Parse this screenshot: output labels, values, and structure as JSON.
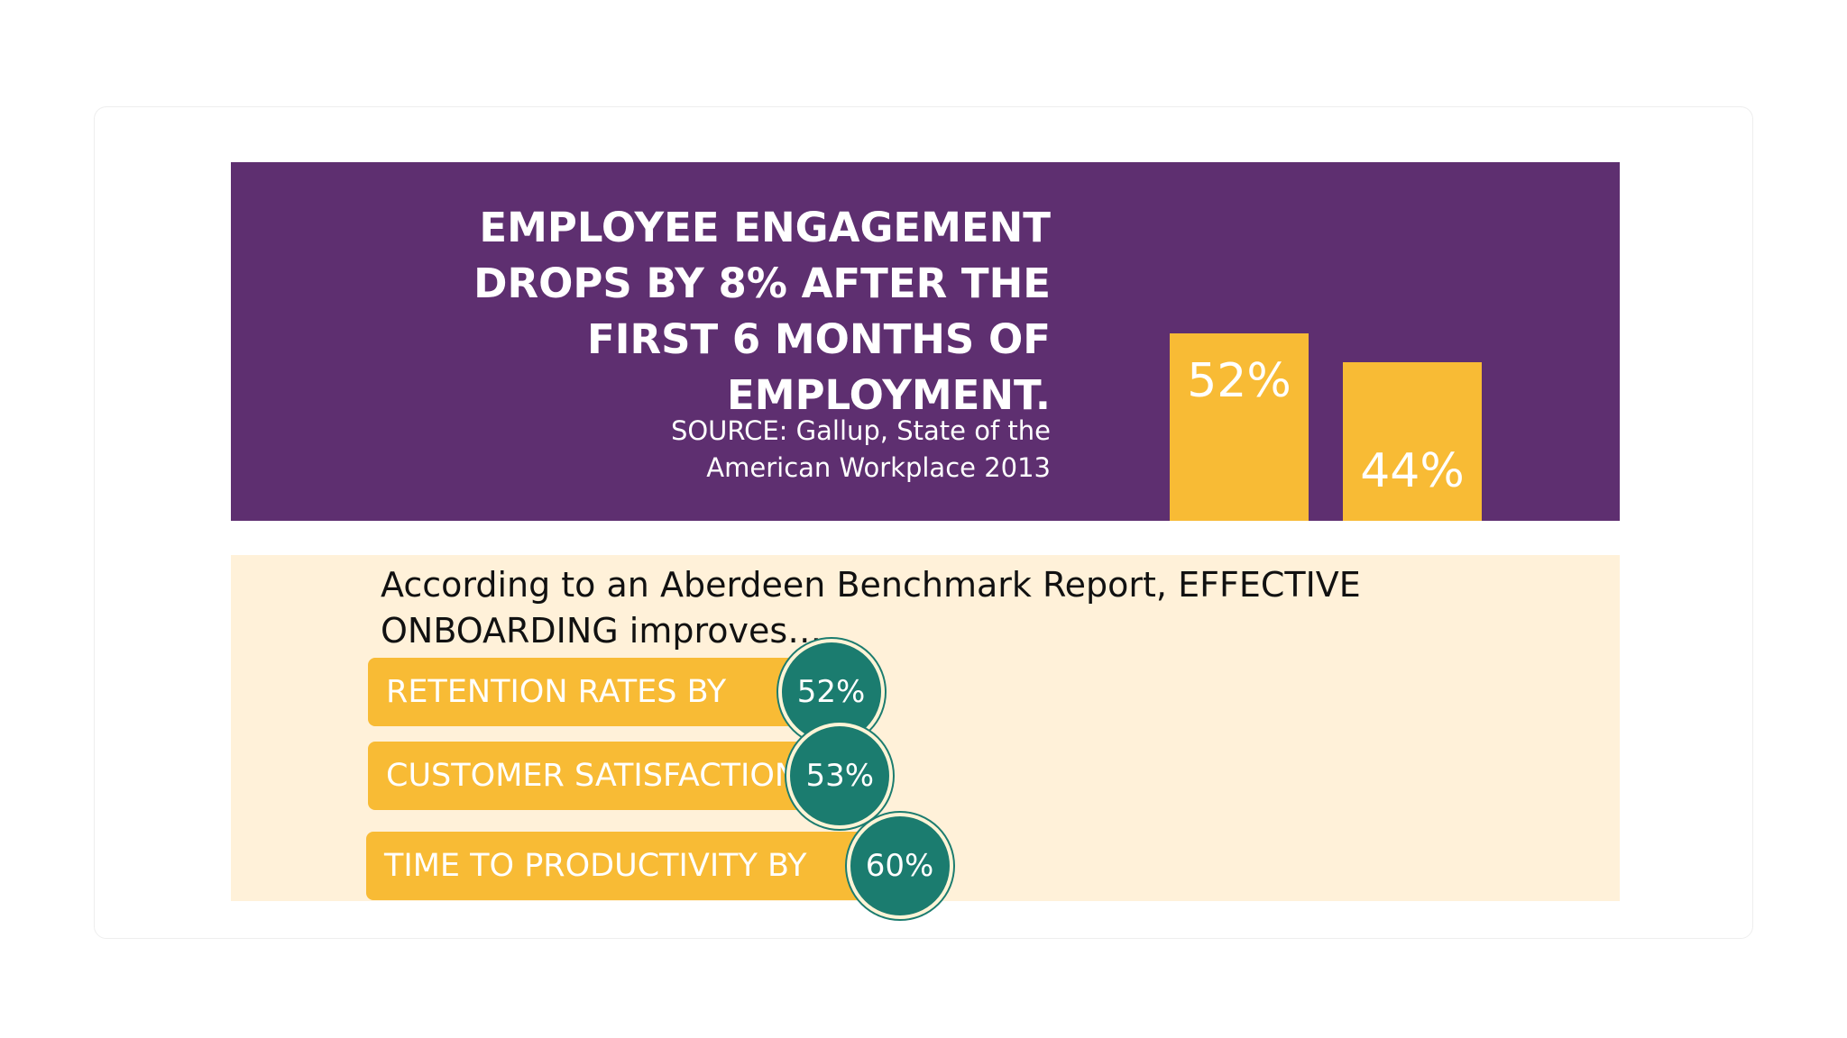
{
  "top_panel": {
    "headline_lines": [
      "EMPLOYEE ENGAGEMENT",
      "DROPS BY 8% AFTER THE",
      "FIRST 6 MONTHS OF",
      "EMPLOYMENT."
    ],
    "source_lines": [
      "SOURCE: Gallup, State of the",
      "American Workplace 2013"
    ]
  },
  "bottom_panel": {
    "intro_lines": [
      "According to an Aberdeen Benchmark Report, EFFECTIVE",
      "ONBOARDING improves…"
    ]
  },
  "colors": {
    "purple": "#5e2f70",
    "gold": "#f8bb35",
    "cream": "#fff1d9",
    "teal": "#1b7c6f",
    "white": "#ffffff"
  },
  "chart_data": [
    {
      "type": "bar",
      "title": "",
      "categories": [
        "",
        ""
      ],
      "values": [
        52,
        44
      ],
      "value_labels": [
        "52%",
        "44%"
      ],
      "ylim": [
        0,
        100
      ],
      "grid": false
    },
    {
      "type": "bar",
      "orientation": "horizontal",
      "title": "",
      "categories": [
        "RETENTION RATES BY",
        "CUSTOMER SATISFACTION BY",
        "TIME TO PRODUCTIVITY BY"
      ],
      "values": [
        52,
        53,
        60
      ],
      "value_labels": [
        "52%",
        "53%",
        "60%"
      ],
      "grid": false
    }
  ]
}
